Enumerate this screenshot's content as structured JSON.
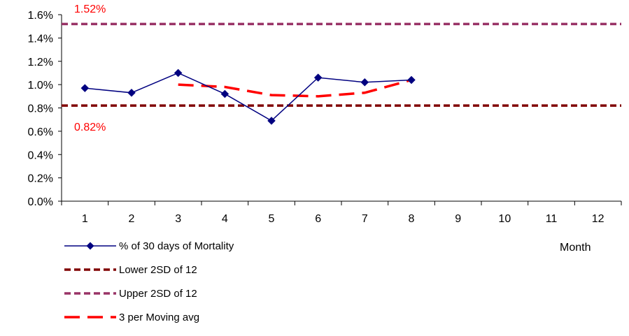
{
  "chart_data": {
    "type": "line",
    "title": "",
    "xlabel": "Month",
    "ylabel": "",
    "categories": [
      "1",
      "2",
      "3",
      "4",
      "5",
      "6",
      "7",
      "8",
      "9",
      "10",
      "11",
      "12"
    ],
    "ylim": [
      0,
      0.016
    ],
    "y_ticks": [
      "0.0%",
      "0.2%",
      "0.4%",
      "0.6%",
      "0.8%",
      "1.0%",
      "1.2%",
      "1.4%",
      "1.6%"
    ],
    "grid": false,
    "legend_position": "bottom-left",
    "series": [
      {
        "name": "% of 30 days of Mortality",
        "style": "solid-line-diamond-markers",
        "color": "#000080",
        "x": [
          1,
          2,
          3,
          4,
          5,
          6,
          7,
          8
        ],
        "values": [
          0.0097,
          0.0093,
          0.011,
          0.0092,
          0.0069,
          0.0106,
          0.0102,
          0.0104
        ]
      },
      {
        "name": "Lower 2SD of 12",
        "style": "dashed",
        "color": "#800000",
        "x": [
          1,
          12
        ],
        "values": [
          0.0082,
          0.0082
        ]
      },
      {
        "name": "Upper 2SD of 12",
        "style": "dashed",
        "color": "#993366",
        "x": [
          1,
          12
        ],
        "values": [
          0.0152,
          0.0152
        ]
      },
      {
        "name": "3 per Moving avg",
        "style": "long-dashed",
        "color": "#ff0000",
        "x": [
          3,
          4,
          5,
          6,
          7,
          8
        ],
        "values": [
          0.01,
          0.0098,
          0.0091,
          0.009,
          0.0093,
          0.0104
        ]
      }
    ],
    "annotations": [
      {
        "text": "1.52%",
        "color": "#ff0000"
      },
      {
        "text": "0.82%",
        "color": "#ff0000"
      }
    ]
  }
}
